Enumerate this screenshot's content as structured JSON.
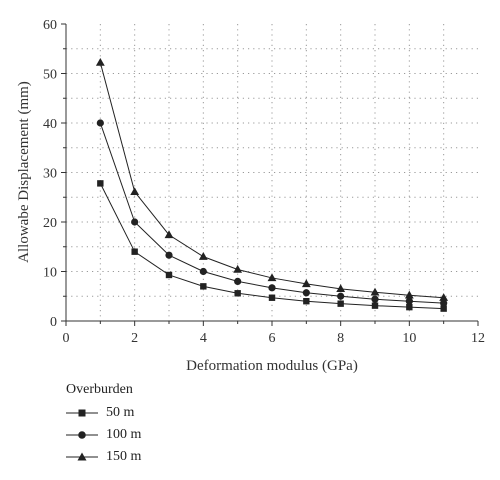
{
  "chart_data": {
    "type": "line",
    "xlabel": "Deformation modulus (GPa)",
    "ylabel": "Allowabe Displacement (mm)",
    "xlim": [
      0,
      12
    ],
    "ylim": [
      0,
      60
    ],
    "xticks": [
      0,
      2,
      4,
      6,
      8,
      10,
      12
    ],
    "yticks": [
      0,
      10,
      20,
      30,
      40,
      50,
      60
    ],
    "grid": "dotted",
    "legend_position": "below",
    "legend_title": "Overburden",
    "x": [
      1,
      2,
      3,
      4,
      5,
      6,
      7,
      8,
      9,
      10,
      11
    ],
    "series": [
      {
        "name": "50 m",
        "marker": "square",
        "values": [
          27.8,
          14.0,
          9.3,
          7.0,
          5.6,
          4.7,
          4.0,
          3.5,
          3.1,
          2.8,
          2.5
        ]
      },
      {
        "name": "100 m",
        "marker": "circle",
        "values": [
          40.0,
          20.0,
          13.3,
          10.0,
          8.0,
          6.7,
          5.7,
          5.0,
          4.4,
          4.0,
          3.6
        ]
      },
      {
        "name": "150 m",
        "marker": "triangle",
        "values": [
          52.2,
          26.1,
          17.4,
          13.0,
          10.4,
          8.7,
          7.5,
          6.5,
          5.8,
          5.2,
          4.7
        ]
      }
    ]
  }
}
